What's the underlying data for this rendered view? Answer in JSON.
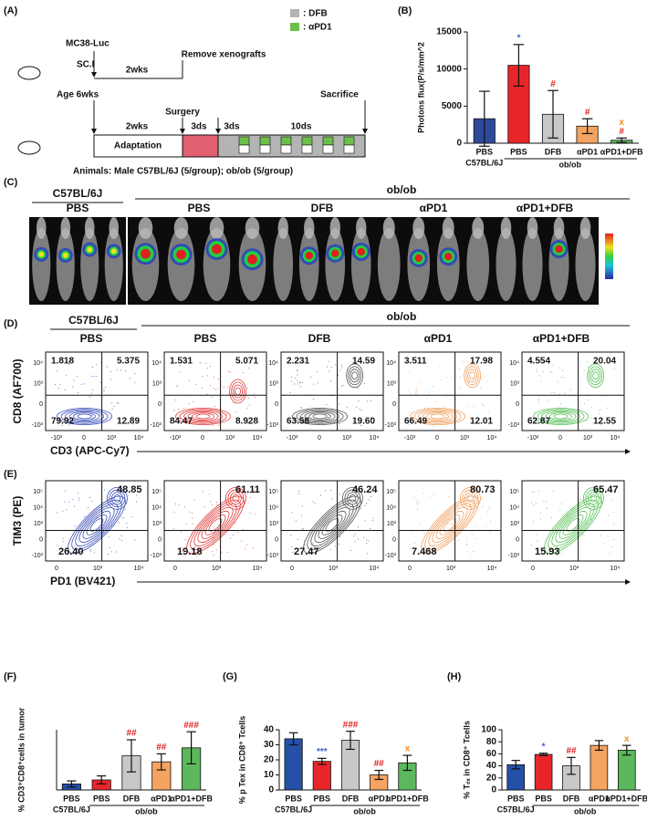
{
  "panel_labels": [
    "(A)",
    "(B)",
    "(C)",
    "(D)",
    "(E)",
    "(F)",
    "(G)",
    "(H)"
  ],
  "schematic": {
    "cell_line": "MC38-Luc",
    "injection": "SC.I",
    "first_interval": "2wks",
    "removal": "Remove xenografts",
    "age": "Age 6wks",
    "surgery": "Surgery",
    "adaptation_interval": "2wks",
    "recovery_interval": "3ds",
    "wait_interval": "3ds",
    "treatment_interval": "10ds",
    "end": "Sacrifice",
    "adaptation": "Adaptation",
    "legend": [
      ": DFB",
      ": αPD1"
    ],
    "animals": "Animals: Male C57BL/6J (5/group); ob/ob (5/group)"
  },
  "chart_data": [
    {
      "type": "bar",
      "y_label": "Photons flux(P/s/mm^2",
      "categories": [
        "PBS",
        "PBS",
        "DFB",
        "αPD1",
        "αPD1+DFB"
      ],
      "group_labels": [
        "C57BL/6J",
        "ob/ob"
      ],
      "values": [
        3300,
        10500,
        3900,
        2300,
        400
      ],
      "errors": [
        3700,
        2800,
        3200,
        1000,
        300
      ],
      "colors": [
        "#2d4a9a",
        "#e8262a",
        "#c8c8c8",
        "#f4a460",
        "#5cb85c"
      ],
      "annotations": [
        [],
        [
          {
            "text": "*",
            "color": "#3a5fc8"
          }
        ],
        [
          {
            "text": "#",
            "color": "#e02020"
          }
        ],
        [
          {
            "text": "#",
            "color": "#e02020"
          }
        ],
        [
          {
            "text": "#",
            "color": "#e02020"
          },
          {
            "text": "x",
            "color": "#f08c1e"
          }
        ]
      ],
      "ylim": [
        0,
        15000
      ],
      "yticks": [
        0,
        5000,
        10000,
        15000
      ]
    },
    {
      "type": "bar",
      "y_label": "% CD3⁺CD8⁺cells in tumor",
      "categories": [
        "PBS",
        "PBS",
        "DFB",
        "αPD1",
        "αPD1+DFB"
      ],
      "group_labels": [
        "C57BL/6J",
        "ob/ob"
      ],
      "values": [
        3,
        5,
        17,
        14,
        21
      ],
      "errors": [
        1.5,
        2,
        8,
        4,
        8
      ],
      "colors": [
        "#2450a8",
        "#e8262a",
        "#c8c8c8",
        "#f4a460",
        "#5cb85c"
      ],
      "annotations": [
        [],
        [],
        [
          {
            "text": "##",
            "color": "#e02020"
          }
        ],
        [
          {
            "text": "##",
            "color": "#e02020"
          }
        ],
        [
          {
            "text": "###",
            "color": "#e02020"
          }
        ]
      ],
      "ylim": [
        0,
        30
      ],
      "yticks": []
    },
    {
      "type": "bar",
      "y_label": "% p Tex in CD8⁺ Tcells",
      "categories": [
        "PBS",
        "PBS",
        "DFB",
        "αPD1",
        "αPD1+DFB"
      ],
      "group_labels": [
        "C57BL/6J",
        "ob/ob"
      ],
      "values": [
        34,
        19,
        33,
        10,
        18
      ],
      "errors": [
        4,
        2,
        6,
        3,
        5
      ],
      "colors": [
        "#2450a8",
        "#e8262a",
        "#c8c8c8",
        "#f4a460",
        "#5cb85c"
      ],
      "annotations": [
        [],
        [
          {
            "text": "***",
            "color": "#3a5fc8"
          }
        ],
        [
          {
            "text": "###",
            "color": "#e02020"
          }
        ],
        [
          {
            "text": "##",
            "color": "#e02020"
          }
        ],
        [
          {
            "text": "x",
            "color": "#f08c1e"
          }
        ]
      ],
      "ylim": [
        0,
        40
      ],
      "yticks": [
        0,
        10,
        20,
        30,
        40
      ]
    },
    {
      "type": "bar",
      "y_label": "% Tₑₓ in CD8⁺ Tcells",
      "categories": [
        "PBS",
        "PBS",
        "DFB",
        "αPD1",
        "αPD1+DFB"
      ],
      "group_labels": [
        "C57BL/6J",
        "ob/ob"
      ],
      "values": [
        42,
        59,
        40,
        74,
        66
      ],
      "errors": [
        7,
        2,
        14,
        8,
        8
      ],
      "colors": [
        "#2450a8",
        "#e8262a",
        "#c8c8c8",
        "#f4a460",
        "#5cb85c"
      ],
      "annotations": [
        [],
        [
          {
            "text": "*",
            "color": "#3a5fc8"
          }
        ],
        [
          {
            "text": "##",
            "color": "#e02020"
          }
        ],
        [],
        [
          {
            "text": "x",
            "color": "#f08c1e"
          }
        ]
      ],
      "ylim": [
        0,
        100
      ],
      "yticks": [
        0,
        20,
        40,
        60,
        80,
        100
      ]
    }
  ],
  "imaging": {
    "strain_labels": [
      "C57BL/6J",
      "ob/ob"
    ],
    "groups": [
      "PBS",
      "PBS",
      "DFB",
      "αPD1",
      "αPD1+DFB"
    ]
  },
  "flow_cd8": {
    "strain_labels": [
      "C57BL/6J",
      "ob/ob"
    ],
    "groups": [
      "PBS",
      "PBS",
      "DFB",
      "αPD1",
      "αPD1+DFB"
    ],
    "y_label": "CD8 (AF700)",
    "x_label": "CD3 (APC-Cy7)",
    "y_ticks": [
      "10⁴",
      "10³",
      "0",
      "-10³"
    ],
    "x_ticks": [
      "-10³",
      "0",
      "10³",
      "10⁴"
    ],
    "quadrants": [
      [
        "1.818",
        "5.375",
        "79.92",
        "12.89"
      ],
      [
        "1.531",
        "5.071",
        "84.47",
        "8.928"
      ],
      [
        "2.231",
        "14.59",
        "63.58",
        "19.60"
      ],
      [
        "3.511",
        "17.98",
        "66.49",
        "12.01"
      ],
      [
        "4.554",
        "20.04",
        "62.87",
        "12.55"
      ]
    ]
  },
  "flow_tim3": {
    "y_label": "TIM3 (PE)",
    "x_label": "PD1 (BV421)",
    "y_ticks": [
      "10⁵",
      "10⁴",
      "10³",
      "0",
      "-10³"
    ],
    "x_ticks": [
      "0",
      "10³",
      "10⁴"
    ],
    "quadrants": [
      [
        "48.85",
        "26.40"
      ],
      [
        "61.11",
        "19.18"
      ],
      [
        "46.24",
        "27.47"
      ],
      [
        "80.73",
        "7.468"
      ],
      [
        "65.47",
        "15.93"
      ]
    ]
  }
}
